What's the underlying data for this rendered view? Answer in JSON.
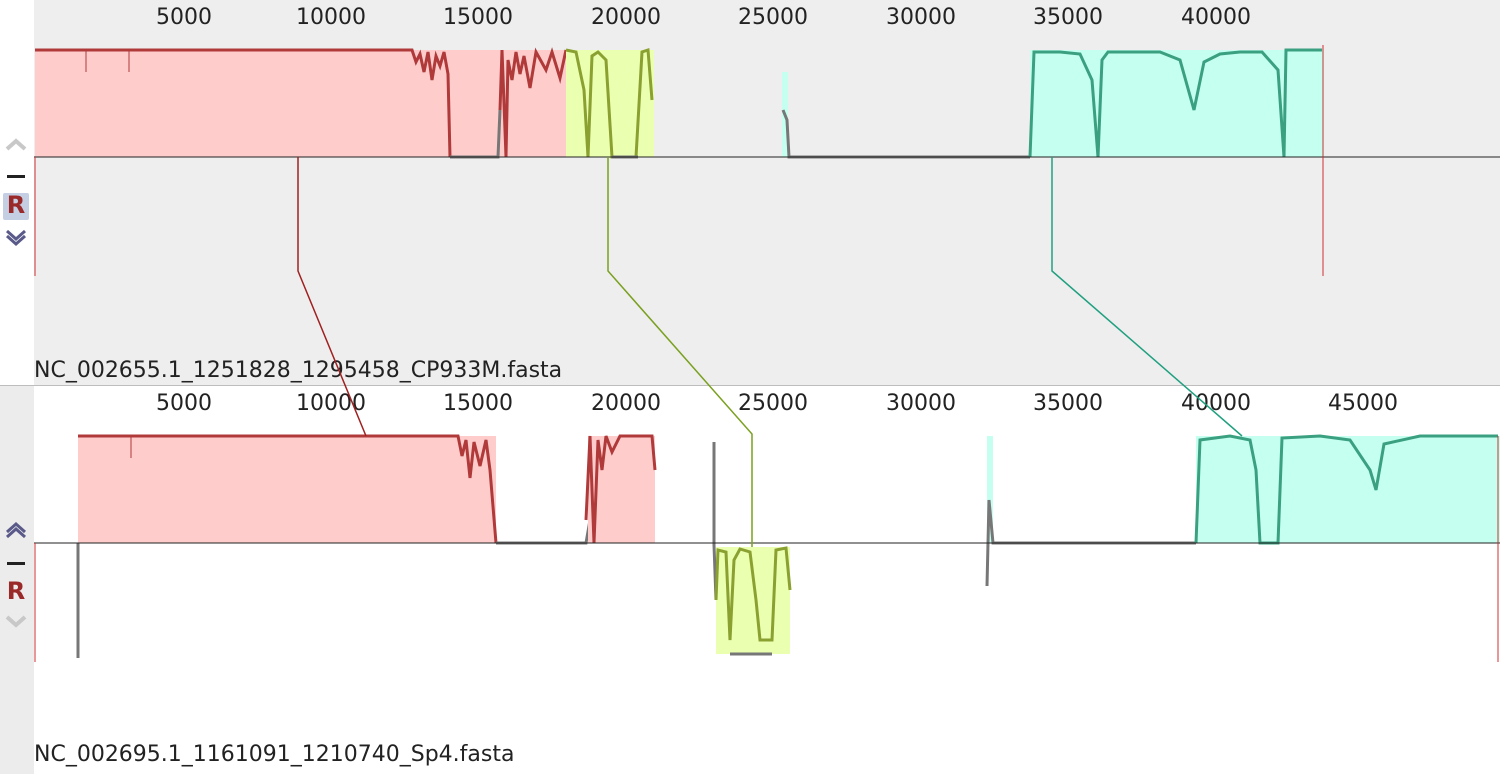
{
  "sequences": [
    {
      "name": "NC_002655.1_1251828_1295458_CP933M.fasta",
      "ticks": [
        "5000",
        "10000",
        "15000",
        "20000",
        "25000",
        "30000",
        "35000",
        "40000"
      ],
      "reference": true
    },
    {
      "name": "NC_002695.1_1161091_1210740_Sp4.fasta",
      "ticks": [
        "5000",
        "10000",
        "15000",
        "20000",
        "25000",
        "30000",
        "35000",
        "40000",
        "45000"
      ],
      "reference": false
    }
  ],
  "controls": {
    "reference_label": "R"
  },
  "colors": {
    "block_red_fill": "#ffcccc",
    "block_red_line": "#b03a3a",
    "block_green_fill": "#eaffb0",
    "block_green_line": "#8aa030",
    "block_teal_fill": "#c4fff0",
    "block_teal_line": "#3aa080",
    "gap_line": "#777777",
    "connector_red": "#a02020",
    "connector_green": "#7aa020",
    "connector_teal": "#20a080"
  },
  "icons": [
    "chevron-up-icon",
    "minus-icon",
    "reference-r-icon",
    "chevron-down-icon"
  ]
}
